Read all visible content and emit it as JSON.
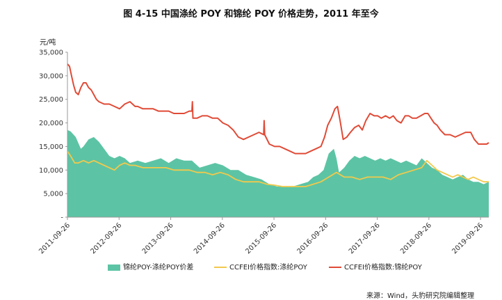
{
  "chart_data": {
    "type": "area",
    "title": "图 4-15 中国涤纶 POY 和锦纶 POY 价格走势，2011 年至今",
    "y_unit": "元/吨",
    "ylim": [
      0,
      35000
    ],
    "y_ticks": [
      "-",
      "5,000",
      "10,000",
      "15,000",
      "20,000",
      "25,000",
      "30,000",
      "35,000"
    ],
    "y_tick_values": [
      0,
      5000,
      10000,
      15000,
      20000,
      25000,
      30000,
      35000
    ],
    "x_range": [
      2011.74,
      2019.9
    ],
    "x_ticks": [
      "2011-09-26",
      "2012-09-26",
      "2013-09-26",
      "2014-09-26",
      "2015-09-26",
      "2016-09-26",
      "2017-09-26",
      "2018-09-26",
      "2019-09-26"
    ],
    "x_tick_values": [
      2011.74,
      2012.74,
      2013.74,
      2014.74,
      2015.74,
      2016.74,
      2017.74,
      2018.74,
      2019.74
    ],
    "series": [
      {
        "name": "锦纶POY-涤纶POY价差",
        "type": "area",
        "color": "#5cc4a4",
        "x": [
          2011.74,
          2011.8,
          2011.9,
          2012.0,
          2012.05,
          2012.15,
          2012.25,
          2012.35,
          2012.45,
          2012.55,
          2012.65,
          2012.75,
          2012.85,
          2012.95,
          2013.1,
          2013.25,
          2013.4,
          2013.55,
          2013.7,
          2013.85,
          2014.0,
          2014.15,
          2014.3,
          2014.45,
          2014.6,
          2014.75,
          2014.9,
          2015.05,
          2015.2,
          2015.35,
          2015.5,
          2015.65,
          2015.8,
          2015.95,
          2016.1,
          2016.25,
          2016.4,
          2016.5,
          2016.6,
          2016.7,
          2016.8,
          2016.9,
          2016.95,
          2017.0,
          2017.1,
          2017.2,
          2017.3,
          2017.4,
          2017.5,
          2017.6,
          2017.7,
          2017.8,
          2017.9,
          2018.0,
          2018.1,
          2018.2,
          2018.3,
          2018.4,
          2018.5,
          2018.6,
          2018.7,
          2018.8,
          2018.9,
          2019.0,
          2019.1,
          2019.2,
          2019.3,
          2019.4,
          2019.5,
          2019.6,
          2019.7,
          2019.8,
          2019.9
        ],
        "values": [
          18500,
          18200,
          17000,
          14500,
          15000,
          16500,
          17000,
          16000,
          14500,
          13000,
          12500,
          13000,
          12500,
          11500,
          12000,
          11500,
          12000,
          12500,
          11500,
          12500,
          12000,
          12000,
          10500,
          11000,
          11500,
          11000,
          10000,
          10000,
          9000,
          8500,
          8000,
          7000,
          6500,
          6500,
          6500,
          7000,
          7500,
          8500,
          9000,
          10000,
          13500,
          14500,
          12500,
          9500,
          10500,
          12000,
          13000,
          12500,
          13000,
          12500,
          12000,
          12500,
          12000,
          12500,
          12000,
          11500,
          12000,
          11500,
          11000,
          12500,
          11500,
          10500,
          10000,
          9000,
          8500,
          8000,
          8500,
          9000,
          8000,
          7500,
          7500,
          7000,
          7500
        ]
      },
      {
        "name": "CCFEI价格指数:涤纶POY",
        "type": "line",
        "color": "#f2c94c",
        "x": [
          2011.74,
          2011.8,
          2011.88,
          2011.95,
          2012.05,
          2012.15,
          2012.25,
          2012.35,
          2012.45,
          2012.55,
          2012.65,
          2012.75,
          2012.85,
          2012.95,
          2013.05,
          2013.2,
          2013.35,
          2013.5,
          2013.65,
          2013.8,
          2013.95,
          2014.1,
          2014.25,
          2014.4,
          2014.55,
          2014.7,
          2014.85,
          2015.0,
          2015.15,
          2015.3,
          2015.45,
          2015.6,
          2015.75,
          2015.9,
          2016.05,
          2016.2,
          2016.35,
          2016.5,
          2016.65,
          2016.8,
          2016.95,
          2017.1,
          2017.25,
          2017.4,
          2017.55,
          2017.7,
          2017.85,
          2018.0,
          2018.15,
          2018.3,
          2018.45,
          2018.6,
          2018.7,
          2018.8,
          2018.9,
          2019.0,
          2019.1,
          2019.2,
          2019.3,
          2019.4,
          2019.5,
          2019.6,
          2019.7,
          2019.8,
          2019.9
        ],
        "values": [
          14000,
          13000,
          11500,
          11500,
          12000,
          11500,
          12000,
          11500,
          11000,
          10500,
          10000,
          11000,
          11500,
          11000,
          11000,
          10500,
          10500,
          10500,
          10500,
          10000,
          10000,
          10000,
          9500,
          9500,
          9000,
          9500,
          9000,
          8000,
          7500,
          7500,
          7500,
          7000,
          6800,
          6500,
          6500,
          6500,
          6500,
          7000,
          7500,
          8500,
          9500,
          8500,
          8500,
          8000,
          8500,
          8500,
          8500,
          8000,
          9000,
          9500,
          10000,
          10500,
          12000,
          11000,
          10000,
          9500,
          9000,
          8500,
          9000,
          8500,
          8000,
          8500,
          8000,
          7500,
          7500
        ]
      },
      {
        "name": "CCFEI价格指数:锦纶POY",
        "type": "line",
        "color": "#e04a36",
        "x": [
          2011.74,
          2011.78,
          2011.82,
          2011.86,
          2011.9,
          2011.95,
          2012.0,
          2012.05,
          2012.1,
          2012.15,
          2012.2,
          2012.25,
          2012.3,
          2012.35,
          2012.45,
          2012.55,
          2012.65,
          2012.75,
          2012.85,
          2012.95,
          2013.0,
          2013.05,
          2013.1,
          2013.2,
          2013.3,
          2013.4,
          2013.5,
          2013.6,
          2013.7,
          2013.8,
          2013.9,
          2014.0,
          2014.1,
          2014.15,
          2014.16,
          2014.17,
          2014.25,
          2014.35,
          2014.45,
          2014.55,
          2014.65,
          2014.75,
          2014.85,
          2014.95,
          2015.05,
          2015.15,
          2015.25,
          2015.35,
          2015.45,
          2015.54,
          2015.55,
          2015.56,
          2015.65,
          2015.75,
          2015.85,
          2015.95,
          2016.05,
          2016.15,
          2016.25,
          2016.35,
          2016.45,
          2016.55,
          2016.65,
          2016.72,
          2016.78,
          2016.85,
          2016.92,
          2016.97,
          2017.02,
          2017.08,
          2017.15,
          2017.22,
          2017.3,
          2017.38,
          2017.45,
          2017.52,
          2017.6,
          2017.68,
          2017.75,
          2017.82,
          2017.9,
          2017.98,
          2018.05,
          2018.12,
          2018.2,
          2018.28,
          2018.35,
          2018.42,
          2018.5,
          2018.58,
          2018.66,
          2018.72,
          2018.78,
          2018.84,
          2018.9,
          2018.96,
          2019.05,
          2019.15,
          2019.25,
          2019.35,
          2019.45,
          2019.55,
          2019.62,
          2019.7,
          2019.78,
          2019.86,
          2019.9
        ],
        "values": [
          32500,
          32000,
          30000,
          28000,
          26500,
          26000,
          27500,
          28500,
          28500,
          27500,
          27000,
          26000,
          25000,
          24500,
          24000,
          24000,
          23500,
          23000,
          24000,
          24500,
          24000,
          23500,
          23500,
          23000,
          23000,
          23000,
          22500,
          22500,
          22500,
          22000,
          22000,
          22000,
          22500,
          22500,
          24500,
          21000,
          21000,
          21500,
          21500,
          21000,
          21000,
          20000,
          19500,
          18500,
          17000,
          16500,
          17000,
          17500,
          18000,
          17500,
          20500,
          17500,
          15500,
          15000,
          15000,
          14500,
          14000,
          13500,
          13500,
          13500,
          14000,
          14500,
          15000,
          17000,
          19500,
          21000,
          23000,
          23500,
          20500,
          16500,
          17000,
          18000,
          19000,
          19500,
          18500,
          20500,
          22000,
          21500,
          21500,
          21000,
          21500,
          21000,
          21500,
          20500,
          20000,
          21500,
          21500,
          21000,
          21000,
          21500,
          22000,
          22000,
          21000,
          20000,
          19500,
          18500,
          17500,
          17500,
          17000,
          17500,
          18000,
          18000,
          16500,
          15500,
          15500,
          15500,
          15800
        ]
      }
    ],
    "legend": {
      "position": "bottom"
    }
  },
  "source_note": "来源：Wind，头豹研究院编辑整理"
}
